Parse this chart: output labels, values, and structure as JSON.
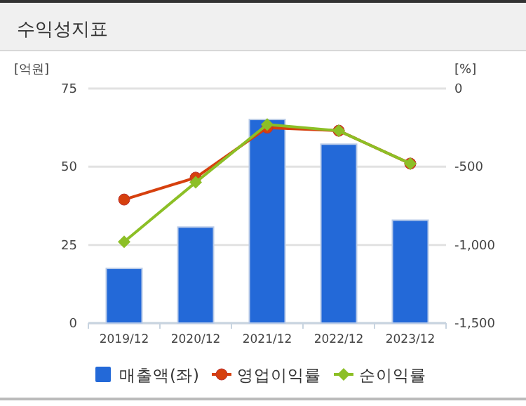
{
  "chart_data": {
    "type": "bar",
    "title": "수익성지표",
    "ylabel": "[억원]",
    "y2label": "[%]",
    "categories": [
      "2019/12",
      "2020/12",
      "2021/12",
      "2022/12",
      "2023/12"
    ],
    "series": [
      {
        "name": "매출액(좌)",
        "color": "#2369d8",
        "values": [
          17.5,
          30.7,
          65.1,
          57.2,
          32.9
        ]
      },
      {
        "name": "영업이익률",
        "type": "line",
        "axis": "y2",
        "marker": "circle",
        "color": "#d6400e",
        "values": [
          -710,
          -570,
          -250,
          -270,
          -480
        ]
      },
      {
        "name": "순이익률",
        "type": "line",
        "axis": "y2",
        "marker": "diamond",
        "color": "#8cbf26",
        "values": [
          -980,
          -600,
          -230,
          -270,
          -480
        ]
      }
    ],
    "ylim": [
      0,
      75
    ],
    "yticks": [
      0,
      25,
      50,
      75
    ],
    "y2lim": [
      -1500,
      0
    ],
    "y2ticks": [
      {
        "value": -1500,
        "label": "-1,500"
      },
      {
        "value": -1000,
        "label": "-1,000"
      },
      -500,
      0
    ],
    "grid": "y",
    "legend": "bottom"
  }
}
